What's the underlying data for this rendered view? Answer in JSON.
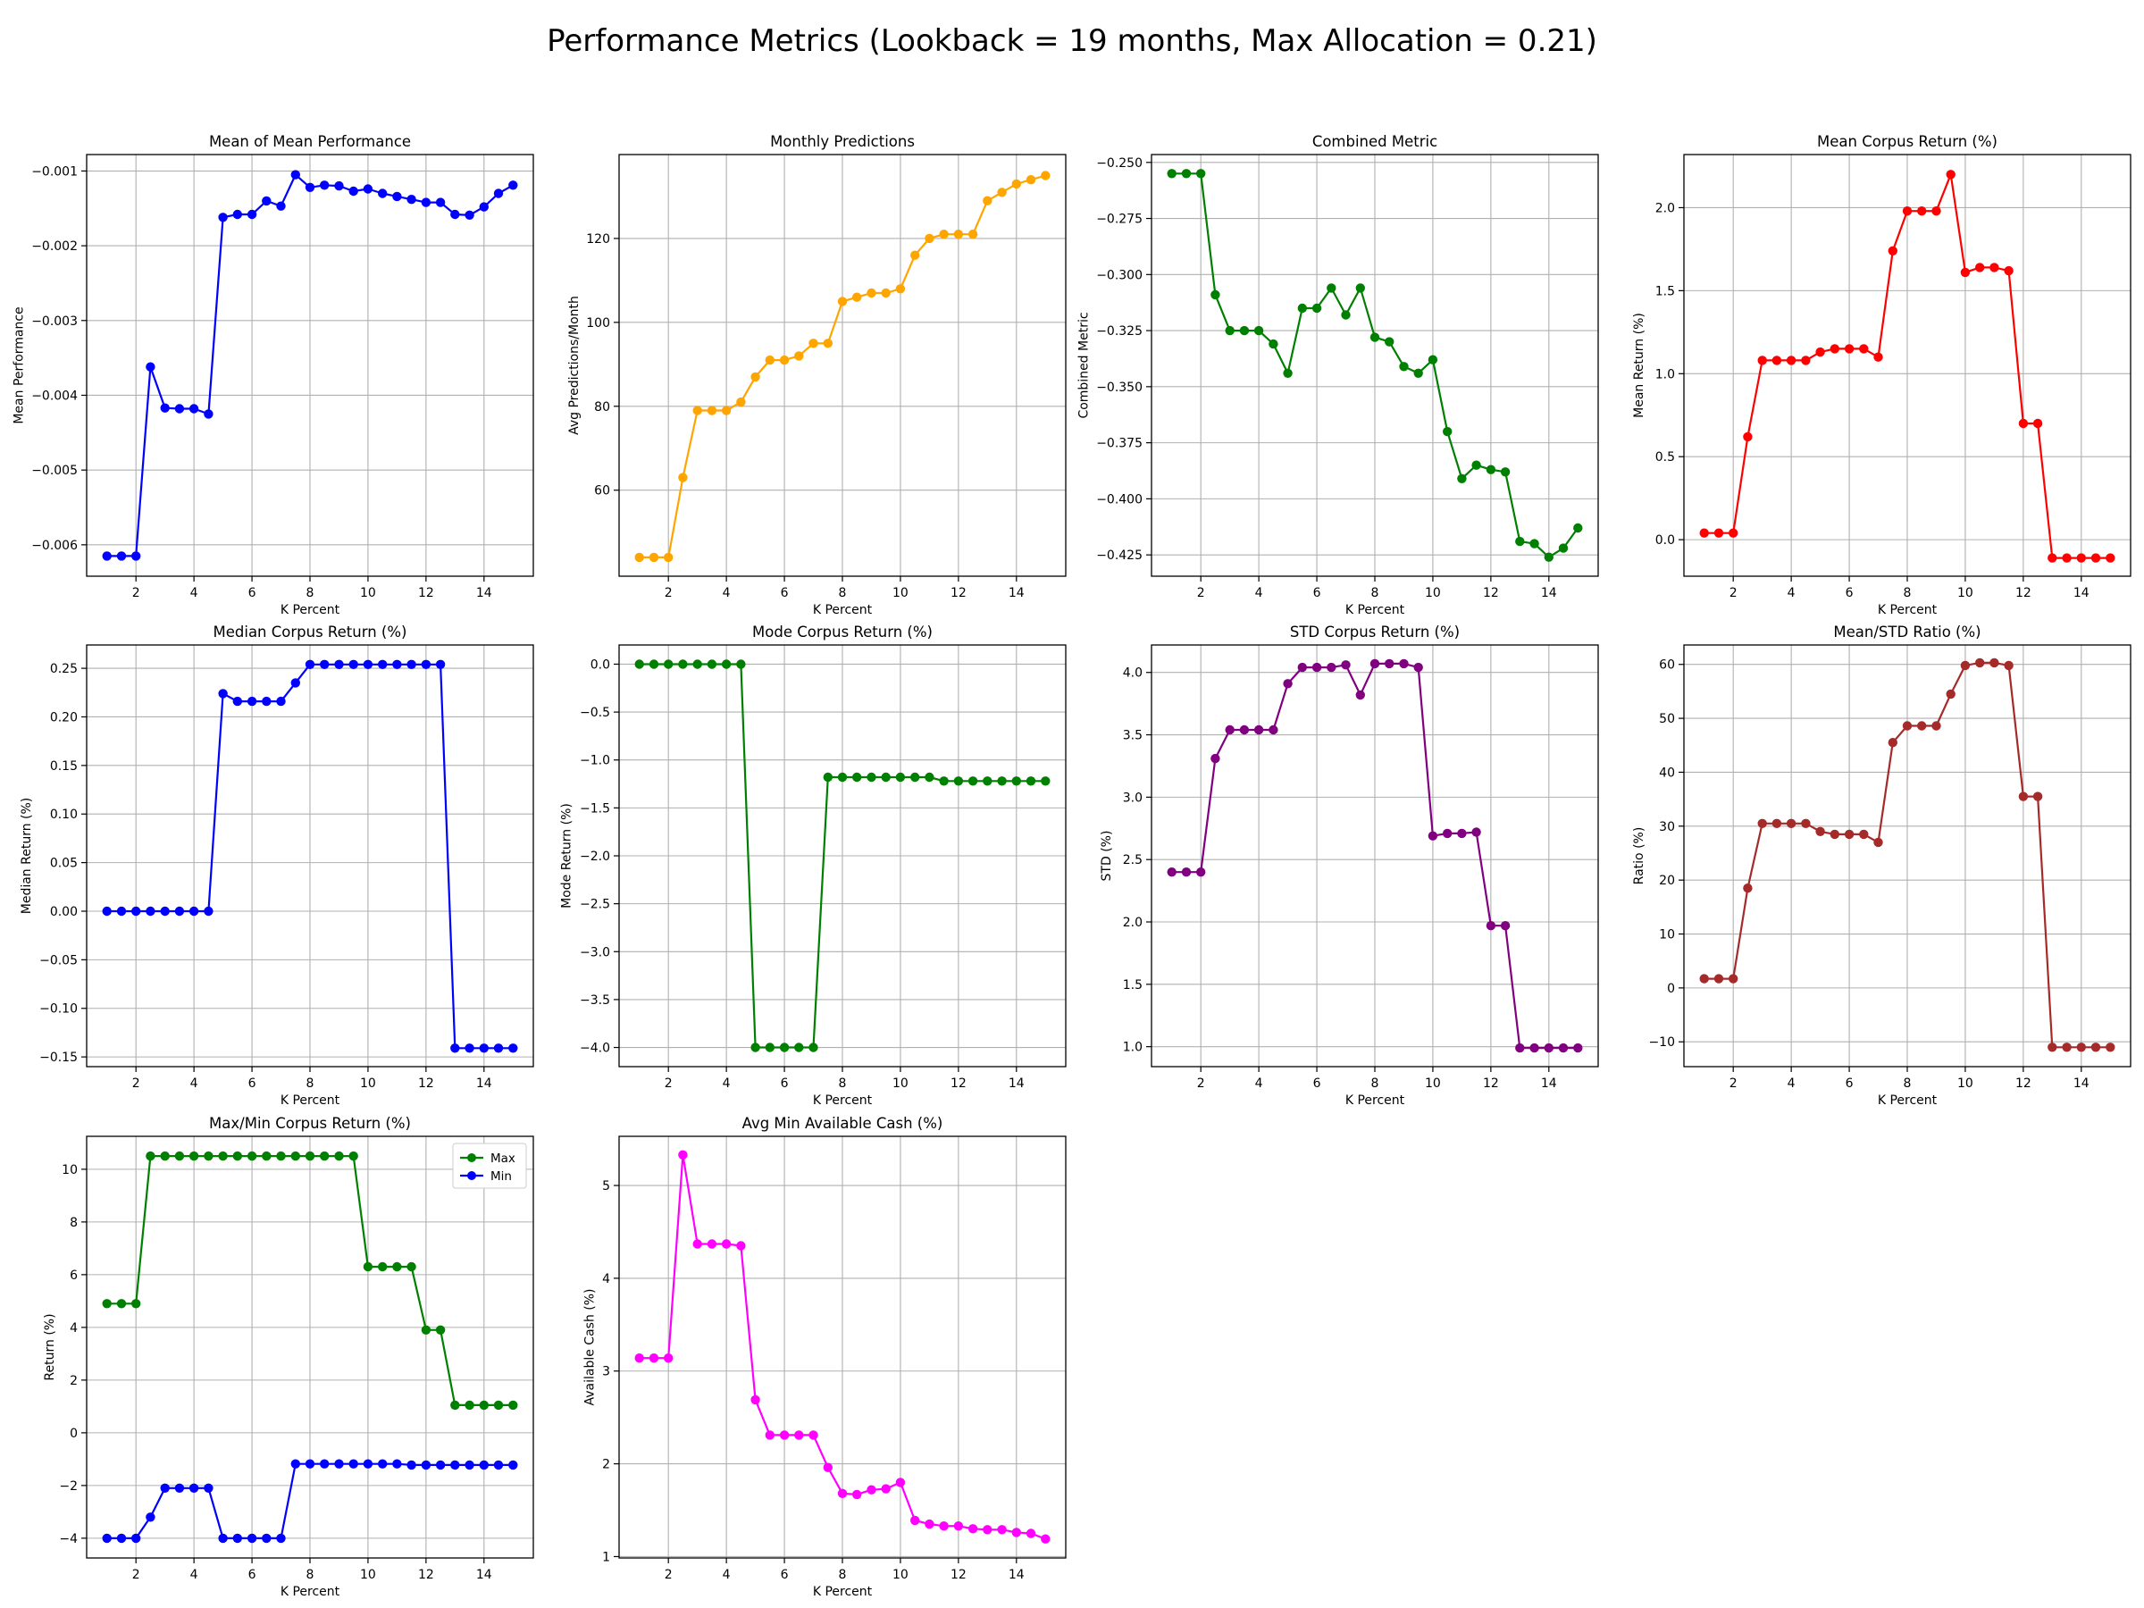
{
  "suptitle": "Performance Metrics (Lookback = 19 months, Max Allocation = 0.21)",
  "chart_data": [
    {
      "type": "line",
      "title": "Mean of Mean Performance",
      "xlabel": "K Percent",
      "ylabel": "Mean Performance",
      "xlim": [
        0.3,
        15.7
      ],
      "ylim": [
        -0.00642,
        -0.00078
      ],
      "xticks": [
        2,
        4,
        6,
        8,
        10,
        12,
        14
      ],
      "yticks": [
        -0.006,
        -0.005,
        -0.004,
        -0.003,
        -0.002,
        -0.001
      ],
      "ytick_labels": [
        "−0.006",
        "−0.005",
        "−0.004",
        "−0.003",
        "−0.002",
        "−0.001"
      ],
      "grid": true,
      "x": [
        1,
        1.5,
        2,
        2.5,
        3,
        3.5,
        4,
        4.5,
        5,
        5.5,
        6,
        6.5,
        7,
        7.5,
        8,
        8.5,
        9,
        9.5,
        10,
        10.5,
        11,
        11.5,
        12,
        12.5,
        13,
        13.5,
        14,
        14.5,
        15
      ],
      "series": [
        {
          "color": "#0000ff",
          "values": [
            -0.00615,
            -0.00615,
            -0.00615,
            -0.00362,
            -0.00417,
            -0.00418,
            -0.00418,
            -0.00425,
            -0.00162,
            -0.00158,
            -0.00158,
            -0.0014,
            -0.00147,
            -0.00105,
            -0.00122,
            -0.00119,
            -0.0012,
            -0.00127,
            -0.00124,
            -0.0013,
            -0.00134,
            -0.00138,
            -0.00142,
            -0.00142,
            -0.00158,
            -0.00159,
            -0.00148,
            -0.0013,
            -0.00119
          ]
        }
      ]
    },
    {
      "type": "line",
      "title": "Monthly Predictions",
      "xlabel": "K Percent",
      "ylabel": "Avg Predictions/Month",
      "xlim": [
        0.3,
        15.7
      ],
      "ylim": [
        39.5,
        140
      ],
      "xticks": [
        2,
        4,
        6,
        8,
        10,
        12,
        14
      ],
      "yticks": [
        60,
        80,
        100,
        120
      ],
      "ytick_labels": [
        "60",
        "80",
        "100",
        "120"
      ],
      "grid": true,
      "x": [
        1,
        1.5,
        2,
        2.5,
        3,
        3.5,
        4,
        4.5,
        5,
        5.5,
        6,
        6.5,
        7,
        7.5,
        8,
        8.5,
        9,
        9.5,
        10,
        10.5,
        11,
        11.5,
        12,
        12.5,
        13,
        13.5,
        14,
        14.5,
        15
      ],
      "series": [
        {
          "color": "#ffa500",
          "values": [
            44,
            44,
            44,
            63,
            79,
            79,
            79,
            81,
            87,
            91,
            91,
            92,
            95,
            95,
            105,
            106,
            107,
            107,
            108,
            116,
            120,
            121,
            121,
            121,
            129,
            131,
            133,
            134,
            135
          ]
        }
      ]
    },
    {
      "type": "line",
      "title": "Combined Metric",
      "xlabel": "K Percent",
      "ylabel": "Combined Metric",
      "xlim": [
        0.3,
        15.7
      ],
      "ylim": [
        -0.4345,
        -0.2465
      ],
      "xticks": [
        2,
        4,
        6,
        8,
        10,
        12,
        14
      ],
      "yticks": [
        -0.425,
        -0.4,
        -0.375,
        -0.35,
        -0.325,
        -0.3,
        -0.275,
        -0.25
      ],
      "ytick_labels": [
        "−0.425",
        "−0.400",
        "−0.375",
        "−0.350",
        "−0.325",
        "−0.300",
        "−0.275",
        "−0.250"
      ],
      "grid": true,
      "x": [
        1,
        1.5,
        2,
        2.5,
        3,
        3.5,
        4,
        4.5,
        5,
        5.5,
        6,
        6.5,
        7,
        7.5,
        8,
        8.5,
        9,
        9.5,
        10,
        10.5,
        11,
        11.5,
        12,
        12.5,
        13,
        13.5,
        14,
        14.5,
        15
      ],
      "series": [
        {
          "color": "#008000",
          "values": [
            -0.255,
            -0.255,
            -0.255,
            -0.309,
            -0.325,
            -0.325,
            -0.325,
            -0.331,
            -0.344,
            -0.315,
            -0.315,
            -0.306,
            -0.318,
            -0.306,
            -0.328,
            -0.33,
            -0.341,
            -0.344,
            -0.338,
            -0.37,
            -0.391,
            -0.385,
            -0.387,
            -0.388,
            -0.419,
            -0.42,
            -0.426,
            -0.422,
            -0.413
          ]
        }
      ]
    },
    {
      "type": "line",
      "title": "Mean Corpus Return (%)",
      "xlabel": "K Percent",
      "ylabel": "Mean Return (%)",
      "xlim": [
        0.3,
        15.7
      ],
      "ylim": [
        -0.22,
        2.32
      ],
      "xticks": [
        2,
        4,
        6,
        8,
        10,
        12,
        14
      ],
      "yticks": [
        0,
        0.5,
        1.0,
        1.5,
        2.0
      ],
      "ytick_labels": [
        "0.0",
        "0.5",
        "1.0",
        "1.5",
        "2.0"
      ],
      "grid": true,
      "x": [
        1,
        1.5,
        2,
        2.5,
        3,
        3.5,
        4,
        4.5,
        5,
        5.5,
        6,
        6.5,
        7,
        7.5,
        8,
        8.5,
        9,
        9.5,
        10,
        10.5,
        11,
        11.5,
        12,
        12.5,
        13,
        13.5,
        14,
        14.5,
        15
      ],
      "series": [
        {
          "color": "#ff0000",
          "values": [
            0.04,
            0.04,
            0.04,
            0.62,
            1.08,
            1.08,
            1.08,
            1.08,
            1.13,
            1.15,
            1.15,
            1.15,
            1.1,
            1.74,
            1.98,
            1.98,
            1.98,
            2.2,
            1.61,
            1.64,
            1.64,
            1.62,
            0.7,
            0.7,
            -0.11,
            -0.11,
            -0.11,
            -0.11,
            -0.11
          ]
        }
      ]
    },
    {
      "type": "line",
      "title": "Median Corpus Return (%)",
      "xlabel": "K Percent",
      "ylabel": "Median Return (%)",
      "xlim": [
        0.3,
        15.7
      ],
      "ylim": [
        -0.16,
        0.274
      ],
      "xticks": [
        2,
        4,
        6,
        8,
        10,
        12,
        14
      ],
      "yticks": [
        -0.15,
        -0.1,
        -0.05,
        0,
        0.05,
        0.1,
        0.15,
        0.2,
        0.25
      ],
      "ytick_labels": [
        "−0.15",
        "−0.10",
        "−0.05",
        "0.00",
        "0.05",
        "0.10",
        "0.15",
        "0.20",
        "0.25"
      ],
      "grid": true,
      "x": [
        1,
        1.5,
        2,
        2.5,
        3,
        3.5,
        4,
        4.5,
        5,
        5.5,
        6,
        6.5,
        7,
        7.5,
        8,
        8.5,
        9,
        9.5,
        10,
        10.5,
        11,
        11.5,
        12,
        12.5,
        13,
        13.5,
        14,
        14.5,
        15
      ],
      "series": [
        {
          "color": "#0000ff",
          "values": [
            0,
            0,
            0,
            0,
            0,
            0,
            0,
            0,
            0.224,
            0.216,
            0.216,
            0.216,
            0.216,
            0.235,
            0.254,
            0.254,
            0.254,
            0.254,
            0.254,
            0.254,
            0.254,
            0.254,
            0.254,
            0.254,
            -0.141,
            -0.141,
            -0.141,
            -0.141,
            -0.141
          ]
        }
      ]
    },
    {
      "type": "line",
      "title": "Mode Corpus Return (%)",
      "xlabel": "K Percent",
      "ylabel": "Mode Return (%)",
      "xlim": [
        0.3,
        15.7
      ],
      "ylim": [
        -4.2,
        0.2
      ],
      "xticks": [
        2,
        4,
        6,
        8,
        10,
        12,
        14
      ],
      "yticks": [
        -4,
        -3.5,
        -3,
        -2.5,
        -2,
        -1.5,
        -1,
        -0.5,
        0
      ],
      "ytick_labels": [
        "−4.0",
        "−3.5",
        "−3.0",
        "−2.5",
        "−2.0",
        "−1.5",
        "−1.0",
        "−0.5",
        "0.0"
      ],
      "grid": true,
      "x": [
        1,
        1.5,
        2,
        2.5,
        3,
        3.5,
        4,
        4.5,
        5,
        5.5,
        6,
        6.5,
        7,
        7.5,
        8,
        8.5,
        9,
        9.5,
        10,
        10.5,
        11,
        11.5,
        12,
        12.5,
        13,
        13.5,
        14,
        14.5,
        15
      ],
      "series": [
        {
          "color": "#008000",
          "values": [
            0,
            0,
            0,
            0,
            0,
            0,
            0,
            0,
            -4.0,
            -4.0,
            -4.0,
            -4.0,
            -4.0,
            -1.18,
            -1.18,
            -1.18,
            -1.18,
            -1.18,
            -1.18,
            -1.18,
            -1.18,
            -1.22,
            -1.22,
            -1.22,
            -1.22,
            -1.22,
            -1.22,
            -1.22,
            -1.22
          ]
        }
      ]
    },
    {
      "type": "line",
      "title": "STD Corpus Return (%)",
      "xlabel": "K Percent",
      "ylabel": "STD (%)",
      "xlim": [
        0.3,
        15.7
      ],
      "ylim": [
        0.84,
        4.22
      ],
      "xticks": [
        2,
        4,
        6,
        8,
        10,
        12,
        14
      ],
      "yticks": [
        1.0,
        1.5,
        2.0,
        2.5,
        3.0,
        3.5,
        4.0
      ],
      "ytick_labels": [
        "1.0",
        "1.5",
        "2.0",
        "2.5",
        "3.0",
        "3.5",
        "4.0"
      ],
      "grid": true,
      "x": [
        1,
        1.5,
        2,
        2.5,
        3,
        3.5,
        4,
        4.5,
        5,
        5.5,
        6,
        6.5,
        7,
        7.5,
        8,
        8.5,
        9,
        9.5,
        10,
        10.5,
        11,
        11.5,
        12,
        12.5,
        13,
        13.5,
        14,
        14.5,
        15
      ],
      "series": [
        {
          "color": "#800080",
          "values": [
            2.4,
            2.4,
            2.4,
            3.31,
            3.54,
            3.54,
            3.54,
            3.54,
            3.91,
            4.04,
            4.04,
            4.04,
            4.06,
            3.82,
            4.07,
            4.07,
            4.07,
            4.04,
            2.69,
            2.71,
            2.71,
            2.72,
            1.97,
            1.97,
            0.99,
            0.99,
            0.99,
            0.99,
            0.99
          ]
        }
      ]
    },
    {
      "type": "line",
      "title": "Mean/STD Ratio (%)",
      "xlabel": "K Percent",
      "ylabel": "Ratio (%)",
      "xlim": [
        0.3,
        15.7
      ],
      "ylim": [
        -14.6,
        63.6
      ],
      "xticks": [
        2,
        4,
        6,
        8,
        10,
        12,
        14
      ],
      "yticks": [
        -10,
        0,
        10,
        20,
        30,
        40,
        50,
        60
      ],
      "ytick_labels": [
        "−10",
        "0",
        "10",
        "20",
        "30",
        "40",
        "50",
        "60"
      ],
      "grid": true,
      "x": [
        1,
        1.5,
        2,
        2.5,
        3,
        3.5,
        4,
        4.5,
        5,
        5.5,
        6,
        6.5,
        7,
        7.5,
        8,
        8.5,
        9,
        9.5,
        10,
        10.5,
        11,
        11.5,
        12,
        12.5,
        13,
        13.5,
        14,
        14.5,
        15
      ],
      "series": [
        {
          "color": "#a52a2a",
          "values": [
            1.7,
            1.7,
            1.7,
            18.5,
            30.5,
            30.5,
            30.5,
            30.5,
            29.0,
            28.5,
            28.5,
            28.5,
            27.0,
            45.5,
            48.6,
            48.6,
            48.6,
            54.5,
            59.8,
            60.3,
            60.3,
            59.8,
            35.5,
            35.5,
            -11.0,
            -11.0,
            -11.0,
            -11.0,
            -11.0
          ]
        }
      ]
    },
    {
      "type": "line",
      "title": "Max/Min Corpus Return (%)",
      "xlabel": "K Percent",
      "ylabel": "Return (%)",
      "xlim": [
        0.3,
        15.7
      ],
      "ylim": [
        -4.75,
        11.25
      ],
      "xticks": [
        2,
        4,
        6,
        8,
        10,
        12,
        14
      ],
      "yticks": [
        -4,
        -2,
        0,
        2,
        4,
        6,
        8,
        10
      ],
      "ytick_labels": [
        "−4",
        "−2",
        "0",
        "2",
        "4",
        "6",
        "8",
        "10"
      ],
      "grid": true,
      "legend": "top-right",
      "x": [
        1,
        1.5,
        2,
        2.5,
        3,
        3.5,
        4,
        4.5,
        5,
        5.5,
        6,
        6.5,
        7,
        7.5,
        8,
        8.5,
        9,
        9.5,
        10,
        10.5,
        11,
        11.5,
        12,
        12.5,
        13,
        13.5,
        14,
        14.5,
        15
      ],
      "series": [
        {
          "name": "Max",
          "color": "#008000",
          "values": [
            4.9,
            4.9,
            4.9,
            10.5,
            10.5,
            10.5,
            10.5,
            10.5,
            10.5,
            10.5,
            10.5,
            10.5,
            10.5,
            10.5,
            10.5,
            10.5,
            10.5,
            10.5,
            6.3,
            6.3,
            6.3,
            6.3,
            3.9,
            3.9,
            1.05,
            1.05,
            1.05,
            1.05,
            1.05
          ]
        },
        {
          "name": "Min",
          "color": "#0000ff",
          "values": [
            -4.0,
            -4.0,
            -4.0,
            -3.2,
            -2.1,
            -2.1,
            -2.1,
            -2.1,
            -4.0,
            -4.0,
            -4.0,
            -4.0,
            -4.0,
            -1.18,
            -1.18,
            -1.18,
            -1.18,
            -1.18,
            -1.18,
            -1.18,
            -1.18,
            -1.22,
            -1.22,
            -1.22,
            -1.22,
            -1.22,
            -1.22,
            -1.22,
            -1.22
          ]
        }
      ]
    },
    {
      "type": "line",
      "title": "Avg Min Available Cash (%)",
      "xlabel": "K Percent",
      "ylabel": "Available Cash (%)",
      "xlim": [
        0.3,
        15.7
      ],
      "ylim": [
        0.985,
        5.53
      ],
      "xticks": [
        2,
        4,
        6,
        8,
        10,
        12,
        14
      ],
      "yticks": [
        1,
        2,
        3,
        4,
        5
      ],
      "ytick_labels": [
        "1",
        "2",
        "3",
        "4",
        "5"
      ],
      "grid": true,
      "x": [
        1,
        1.5,
        2,
        2.5,
        3,
        3.5,
        4,
        4.5,
        5,
        5.5,
        6,
        6.5,
        7,
        7.5,
        8,
        8.5,
        9,
        9.5,
        10,
        10.5,
        11,
        11.5,
        12,
        12.5,
        13,
        13.5,
        14,
        14.5,
        15
      ],
      "series": [
        {
          "color": "#ff00ff",
          "values": [
            3.14,
            3.14,
            3.14,
            5.33,
            4.37,
            4.37,
            4.37,
            4.35,
            2.69,
            2.31,
            2.31,
            2.31,
            2.31,
            1.96,
            1.68,
            1.67,
            1.72,
            1.73,
            1.8,
            1.39,
            1.35,
            1.33,
            1.33,
            1.3,
            1.29,
            1.29,
            1.26,
            1.25,
            1.19
          ]
        }
      ]
    }
  ]
}
